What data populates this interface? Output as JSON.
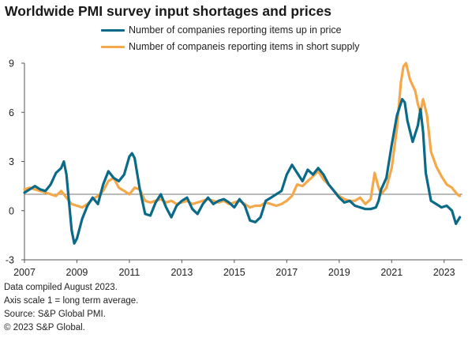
{
  "title": "Worldwide PMI survey input shortages and prices",
  "footnotes": [
    "Data compiled August 2023.",
    "Axis scale 1 = long term average.",
    "Source: S&P Global PMI.",
    "© 2023 S&P Global."
  ],
  "chart_data": {
    "type": "line",
    "title": "Worldwide PMI survey input shortages and prices",
    "xlabel": "",
    "ylabel": "",
    "xlim": [
      2007.0,
      2023.7
    ],
    "ylim": [
      -3,
      9
    ],
    "yticks": [
      -3,
      0,
      3,
      6,
      9
    ],
    "xticks": [
      2007,
      2009,
      2011,
      2013,
      2015,
      2017,
      2019,
      2021,
      2023
    ],
    "reference_line": 1,
    "grid": false,
    "legend_position": "top",
    "series": [
      {
        "name": "Number of companies reporting items up in price",
        "color": "#0b6a87",
        "x": [
          2007.0,
          2007.2,
          2007.4,
          2007.6,
          2007.8,
          2008.0,
          2008.2,
          2008.4,
          2008.5,
          2008.6,
          2008.7,
          2008.8,
          2008.9,
          2009.0,
          2009.2,
          2009.4,
          2009.6,
          2009.8,
          2010.0,
          2010.2,
          2010.4,
          2010.6,
          2010.8,
          2011.0,
          2011.1,
          2011.2,
          2011.4,
          2011.6,
          2011.8,
          2012.0,
          2012.2,
          2012.4,
          2012.6,
          2012.8,
          2013.0,
          2013.2,
          2013.4,
          2013.6,
          2013.8,
          2014.0,
          2014.2,
          2014.4,
          2014.6,
          2014.8,
          2015.0,
          2015.2,
          2015.4,
          2015.6,
          2015.8,
          2016.0,
          2016.2,
          2016.4,
          2016.6,
          2016.8,
          2017.0,
          2017.2,
          2017.4,
          2017.6,
          2017.8,
          2018.0,
          2018.2,
          2018.4,
          2018.6,
          2018.8,
          2019.0,
          2019.2,
          2019.4,
          2019.6,
          2019.8,
          2020.0,
          2020.2,
          2020.4,
          2020.5,
          2020.6,
          2020.8,
          2021.0,
          2021.2,
          2021.4,
          2021.5,
          2021.6,
          2021.8,
          2022.0,
          2022.1,
          2022.2,
          2022.3,
          2022.5,
          2022.7,
          2022.9,
          2023.1,
          2023.3,
          2023.45,
          2023.6
        ],
        "y": [
          1.1,
          1.3,
          1.5,
          1.3,
          1.2,
          1.6,
          2.3,
          2.6,
          3.0,
          2.2,
          0.5,
          -1.2,
          -2.0,
          -1.7,
          -0.5,
          0.3,
          0.8,
          0.4,
          1.6,
          2.4,
          2.0,
          1.8,
          2.2,
          3.3,
          3.5,
          3.2,
          1.3,
          -0.2,
          -0.3,
          0.5,
          1.0,
          0.2,
          -0.4,
          0.3,
          0.6,
          0.8,
          0.1,
          -0.2,
          0.4,
          0.8,
          0.4,
          0.6,
          0.7,
          0.5,
          0.2,
          0.7,
          0.3,
          -0.6,
          -0.7,
          -0.4,
          0.6,
          0.8,
          1.0,
          1.2,
          2.2,
          2.8,
          2.3,
          1.8,
          2.5,
          2.2,
          2.6,
          2.2,
          1.6,
          1.2,
          0.8,
          0.5,
          0.6,
          0.3,
          0.2,
          0.1,
          0.1,
          0.2,
          0.6,
          1.3,
          2.0,
          4.0,
          5.8,
          6.8,
          6.6,
          5.5,
          4.2,
          5.2,
          6.2,
          4.8,
          2.3,
          0.6,
          0.4,
          0.2,
          0.3,
          0.0,
          -0.8,
          -0.4
        ]
      },
      {
        "name": "Number of companeis reporting items in short supply",
        "color": "#f5a84a",
        "x": [
          2007.0,
          2007.2,
          2007.4,
          2007.6,
          2007.8,
          2008.0,
          2008.2,
          2008.4,
          2008.6,
          2008.8,
          2009.0,
          2009.2,
          2009.4,
          2009.6,
          2009.8,
          2010.0,
          2010.2,
          2010.4,
          2010.6,
          2010.8,
          2011.0,
          2011.2,
          2011.4,
          2011.6,
          2011.8,
          2012.0,
          2012.2,
          2012.4,
          2012.6,
          2012.8,
          2013.0,
          2013.2,
          2013.4,
          2013.6,
          2013.8,
          2014.0,
          2014.2,
          2014.4,
          2014.6,
          2014.8,
          2015.0,
          2015.2,
          2015.4,
          2015.6,
          2015.8,
          2016.0,
          2016.2,
          2016.4,
          2016.6,
          2016.8,
          2017.0,
          2017.2,
          2017.4,
          2017.6,
          2017.8,
          2018.0,
          2018.2,
          2018.4,
          2018.6,
          2018.8,
          2019.0,
          2019.2,
          2019.4,
          2019.6,
          2019.8,
          2020.0,
          2020.2,
          2020.35,
          2020.5,
          2020.6,
          2020.8,
          2021.0,
          2021.2,
          2021.35,
          2021.45,
          2021.55,
          2021.7,
          2021.9,
          2022.0,
          2022.1,
          2022.2,
          2022.35,
          2022.5,
          2022.7,
          2022.9,
          2023.1,
          2023.3,
          2023.5,
          2023.6
        ],
        "y": [
          1.3,
          1.4,
          1.3,
          1.2,
          1.1,
          1.0,
          0.9,
          1.2,
          0.8,
          0.4,
          0.3,
          0.2,
          0.4,
          0.7,
          0.9,
          1.2,
          1.8,
          2.0,
          1.4,
          1.2,
          1.0,
          1.4,
          1.3,
          0.6,
          0.5,
          0.6,
          0.7,
          0.5,
          0.6,
          0.4,
          0.5,
          0.6,
          0.4,
          0.5,
          0.6,
          0.7,
          0.6,
          0.5,
          0.6,
          0.4,
          0.5,
          0.6,
          0.4,
          0.2,
          0.3,
          0.3,
          0.5,
          0.4,
          0.3,
          0.4,
          0.6,
          0.9,
          1.6,
          1.5,
          1.8,
          2.1,
          2.4,
          1.9,
          1.6,
          1.2,
          0.9,
          0.7,
          0.6,
          0.6,
          0.8,
          0.4,
          0.7,
          2.3,
          1.4,
          1.0,
          1.4,
          2.6,
          5.0,
          7.8,
          8.8,
          9.0,
          8.0,
          7.3,
          6.5,
          6.0,
          6.8,
          5.8,
          3.6,
          2.7,
          2.1,
          1.6,
          1.4,
          1.0,
          0.9
        ]
      }
    ]
  }
}
